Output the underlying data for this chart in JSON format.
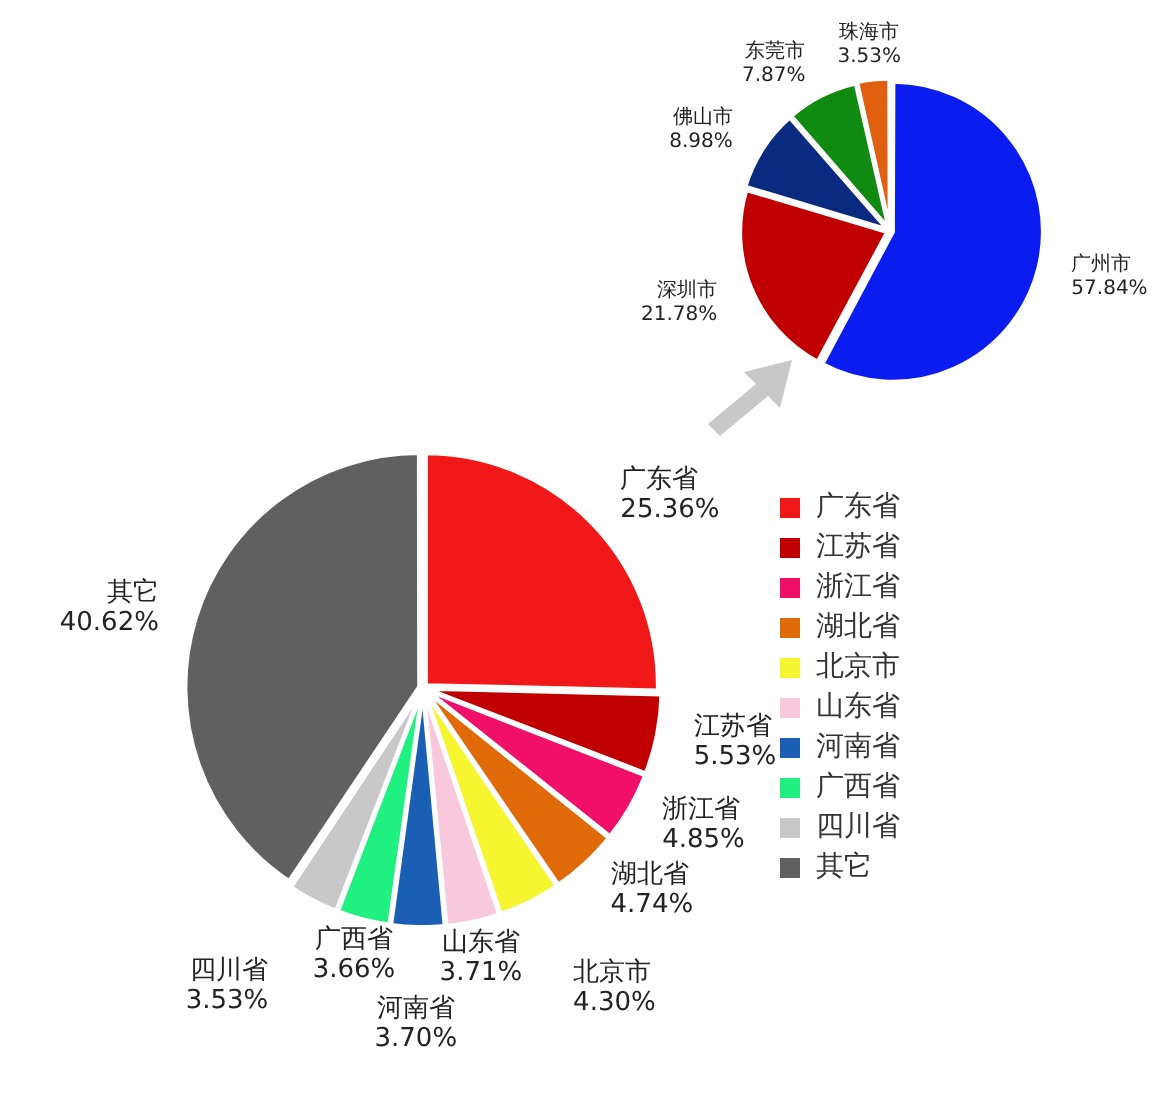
{
  "chart_data": [
    {
      "type": "pie",
      "categories": [
        "广东省",
        "江苏省",
        "浙江省",
        "湖北省",
        "北京市",
        "山东省",
        "河南省",
        "广西省",
        "四川省",
        "其它"
      ],
      "values": [
        25.36,
        5.53,
        4.85,
        4.74,
        4.3,
        3.71,
        3.7,
        3.66,
        3.53,
        40.62
      ],
      "value_labels": [
        "25.36%",
        "5.53%",
        "4.85%",
        "4.74%",
        "4.30%",
        "3.71%",
        "3.70%",
        "3.66%",
        "3.53%",
        "40.62%"
      ],
      "colors": [
        "#f01818",
        "#c00000",
        "#f0106a",
        "#e06a08",
        "#f5f530",
        "#f8c8dc",
        "#1a5fb4",
        "#20f080",
        "#c8c8c8",
        "#606060"
      ],
      "legend": "right"
    },
    {
      "type": "pie",
      "categories": [
        "广州市",
        "深圳市",
        "佛山市",
        "东莞市",
        "珠海市"
      ],
      "values": [
        57.84,
        21.78,
        8.98,
        7.87,
        3.53
      ],
      "value_labels": [
        "57.84%",
        "21.78%",
        "8.98%",
        "7.87%",
        "3.53%"
      ],
      "colors": [
        "#0a1cf0",
        "#c00000",
        "#0a2a80",
        "#108a10",
        "#e06010"
      ]
    }
  ]
}
